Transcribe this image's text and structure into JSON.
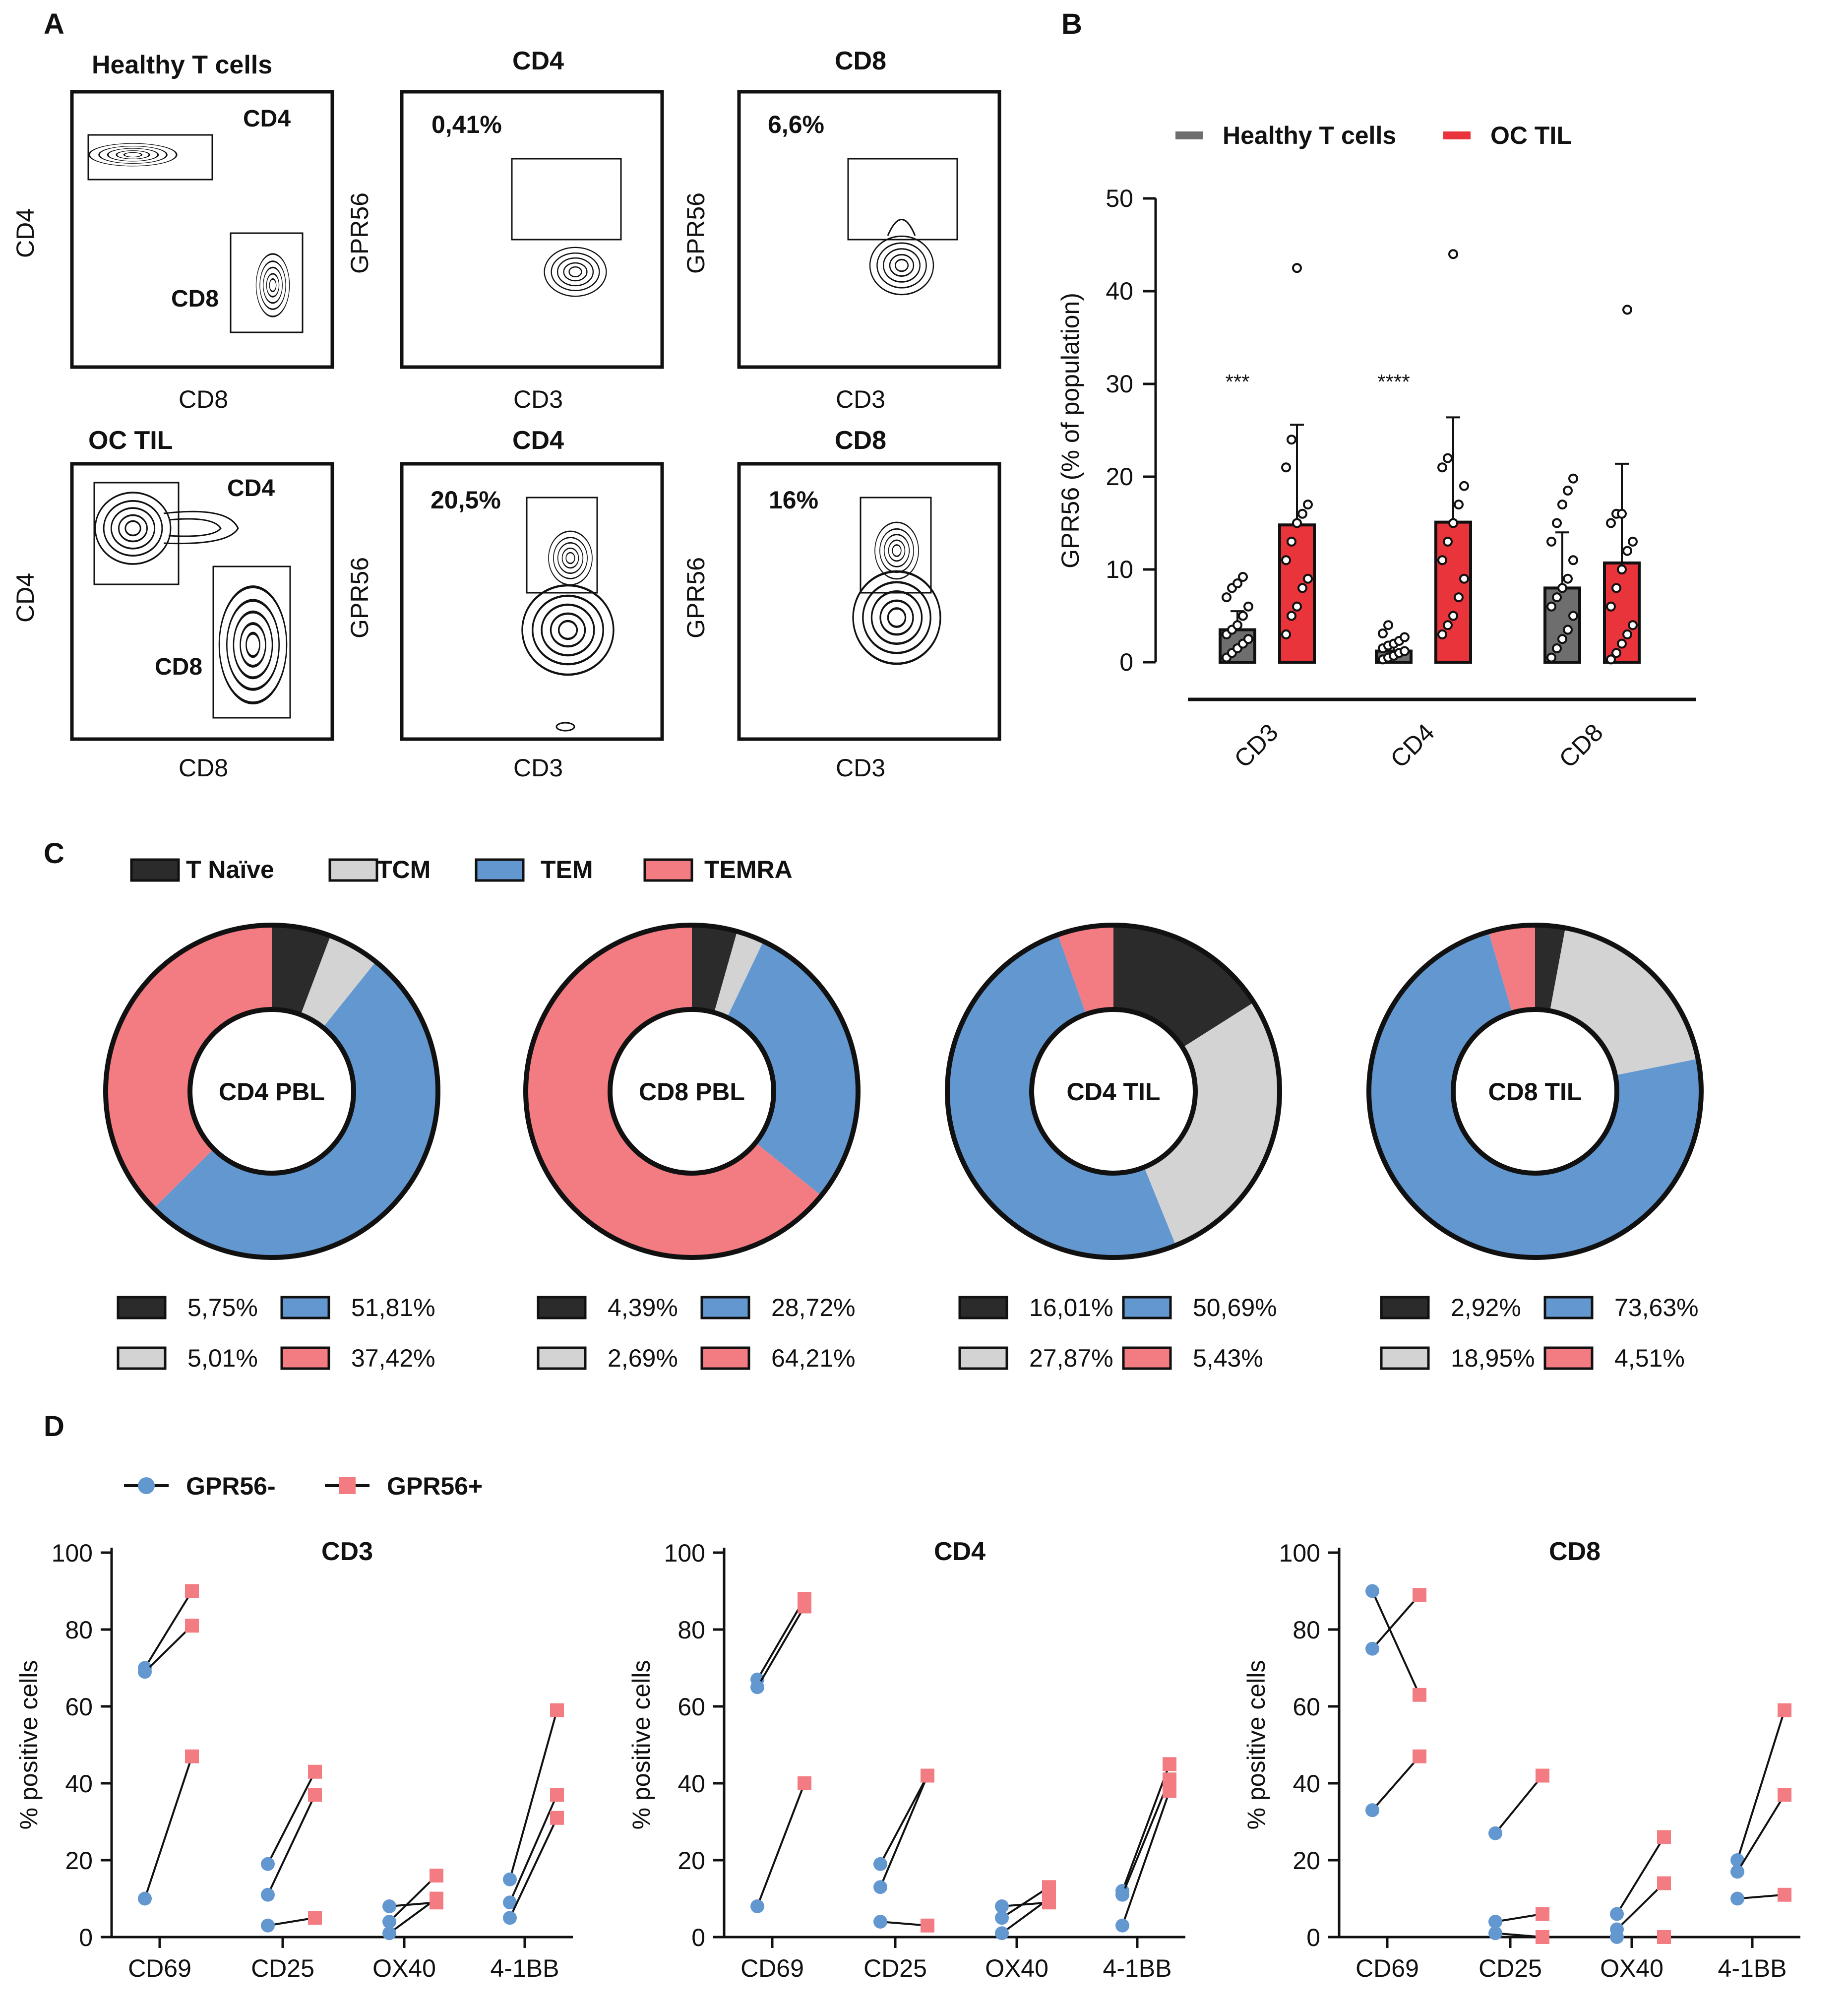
{
  "panel_labels": [
    "A",
    "B",
    "C",
    "D"
  ],
  "panel_a": {
    "rows": [
      {
        "row_label": "Healthy T cells",
        "plots": [
          {
            "kind": "cd4cd8",
            "x_label": "CD8",
            "y_label": "CD4",
            "gate_labels": [
              "CD4",
              "CD8"
            ]
          },
          {
            "kind": "gpr56",
            "title": "CD4",
            "x_label": "CD3",
            "y_label": "GPR56",
            "percent": "0,41%"
          },
          {
            "kind": "gpr56",
            "title": "CD8",
            "x_label": "CD3",
            "y_label": "GPR56",
            "percent": "6,6%"
          }
        ]
      },
      {
        "row_label": "OC TIL",
        "plots": [
          {
            "kind": "cd4cd8",
            "x_label": "CD8",
            "y_label": "CD4",
            "gate_labels": [
              "CD4",
              "CD8"
            ]
          },
          {
            "kind": "gpr56",
            "title": "CD4",
            "x_label": "CD3",
            "y_label": "GPR56",
            "percent": "20,5%"
          },
          {
            "kind": "gpr56",
            "title": "CD8",
            "x_label": "CD3",
            "y_label": "GPR56",
            "percent": "16%"
          }
        ]
      }
    ]
  },
  "chart_data": [
    {
      "type": "bar",
      "panel": "B",
      "ylabel": "GPR56  (% of population)",
      "ylim": [
        0,
        50
      ],
      "yticks": [
        0,
        10,
        20,
        30,
        40,
        50
      ],
      "categories": [
        "CD3",
        "CD4",
        "CD8"
      ],
      "series": [
        {
          "name": "Healthy T cells",
          "color": "#6e6e6e",
          "values": [
            3.5,
            1.2,
            8.0
          ],
          "error": [
            2.0,
            1.0,
            6.0
          ],
          "points": [
            [
              0.5,
              1,
              1.5,
              2,
              2.5,
              3,
              3.5,
              4,
              5,
              6,
              7,
              8,
              8.5,
              9.2
            ],
            [
              0.3,
              0.5,
              0.7,
              1,
              1.2,
              1.5,
              1.8,
              2,
              2.3,
              2.7,
              3.1,
              4
            ],
            [
              0.5,
              1.5,
              2.5,
              3.5,
              5,
              6,
              7,
              8,
              9,
              11,
              13,
              15,
              17,
              18.5,
              19.8
            ]
          ]
        },
        {
          "name": "OC TIL",
          "color": "#e8343a",
          "values": [
            14.8,
            15.1,
            10.7
          ],
          "error": [
            10.8,
            11.3,
            10.7
          ],
          "points": [
            [
              3,
              5,
              6,
              8,
              9,
              11,
              13,
              15,
              16,
              17,
              21,
              24,
              42.5
            ],
            [
              3,
              4,
              5,
              7,
              9,
              11,
              13,
              15,
              17,
              19,
              21,
              22,
              44
            ],
            [
              0.3,
              1,
              2,
              3,
              4,
              6,
              8,
              10,
              12,
              13,
              15,
              16,
              16,
              38
            ]
          ]
        }
      ],
      "significance": [
        "***",
        "****",
        ""
      ]
    },
    {
      "type": "pie",
      "panel": "C",
      "legend": [
        {
          "name": "T Naïve",
          "color": "#2b2b2b"
        },
        {
          "name": "TCM",
          "color": "#d3d3d3"
        },
        {
          "name": "TEM",
          "color": "#6397d0"
        },
        {
          "name": "TEMRA",
          "color": "#f27c82"
        }
      ],
      "donuts": [
        {
          "title": "CD4 PBL",
          "values": [
            5.75,
            5.01,
            51.81,
            37.42
          ],
          "labels": [
            "5,75%",
            "5,01%",
            "51,81%",
            "37,42%"
          ]
        },
        {
          "title": "CD8 PBL",
          "values": [
            4.39,
            2.69,
            28.72,
            64.21
          ],
          "labels": [
            "4,39%",
            "2,69%",
            "28,72%",
            "64,21%"
          ]
        },
        {
          "title": "CD4 TIL",
          "values": [
            16.01,
            27.87,
            50.69,
            5.43
          ],
          "labels": [
            "16,01%",
            "27,87%",
            "50,69%",
            "5,43%"
          ]
        },
        {
          "title": "CD8 TIL",
          "values": [
            2.92,
            18.95,
            73.63,
            4.51
          ],
          "labels": [
            "2,92%",
            "18,95%",
            "73,63%",
            "4,51%"
          ]
        }
      ]
    },
    {
      "type": "line",
      "panel": "D",
      "legend": [
        {
          "name": "GPR56-",
          "color": "#6397d0",
          "marker": "circle"
        },
        {
          "name": "GPR56+",
          "color": "#f27c82",
          "marker": "square"
        }
      ],
      "ylabel": "% positive cells",
      "ylim": [
        0,
        100
      ],
      "yticks": [
        0,
        20,
        40,
        60,
        80,
        100
      ],
      "categories": [
        "CD69",
        "CD25",
        "OX40",
        "4-1BB"
      ],
      "plots": [
        {
          "title": "CD3",
          "pairs": [
            [
              [
                70,
                90
              ],
              [
                69,
                81
              ],
              [
                10,
                47
              ]
            ],
            [
              [
                19,
                43
              ],
              [
                11,
                37
              ],
              [
                3,
                5
              ]
            ],
            [
              [
                8,
                9
              ],
              [
                4,
                16
              ],
              [
                1,
                10
              ]
            ],
            [
              [
                15,
                59
              ],
              [
                9,
                37
              ],
              [
                5,
                31
              ]
            ]
          ]
        },
        {
          "title": "CD4",
          "pairs": [
            [
              [
                67,
                88
              ],
              [
                65,
                86
              ],
              [
                8,
                40
              ]
            ],
            [
              [
                19,
                42
              ],
              [
                13,
                42
              ],
              [
                4,
                3
              ]
            ],
            [
              [
                8,
                9
              ],
              [
                5,
                13
              ],
              [
                1,
                10
              ]
            ],
            [
              [
                12,
                45
              ],
              [
                11,
                41
              ],
              [
                3,
                38
              ]
            ]
          ]
        },
        {
          "title": "CD8",
          "pairs": [
            [
              [
                90,
                63
              ],
              [
                75,
                89
              ],
              [
                33,
                47
              ]
            ],
            [
              [
                27,
                42
              ],
              [
                4,
                6
              ],
              [
                1,
                0
              ]
            ],
            [
              [
                6,
                26
              ],
              [
                2,
                14
              ],
              [
                0,
                0
              ]
            ],
            [
              [
                20,
                59
              ],
              [
                17,
                37
              ],
              [
                10,
                11
              ]
            ]
          ]
        }
      ]
    }
  ]
}
